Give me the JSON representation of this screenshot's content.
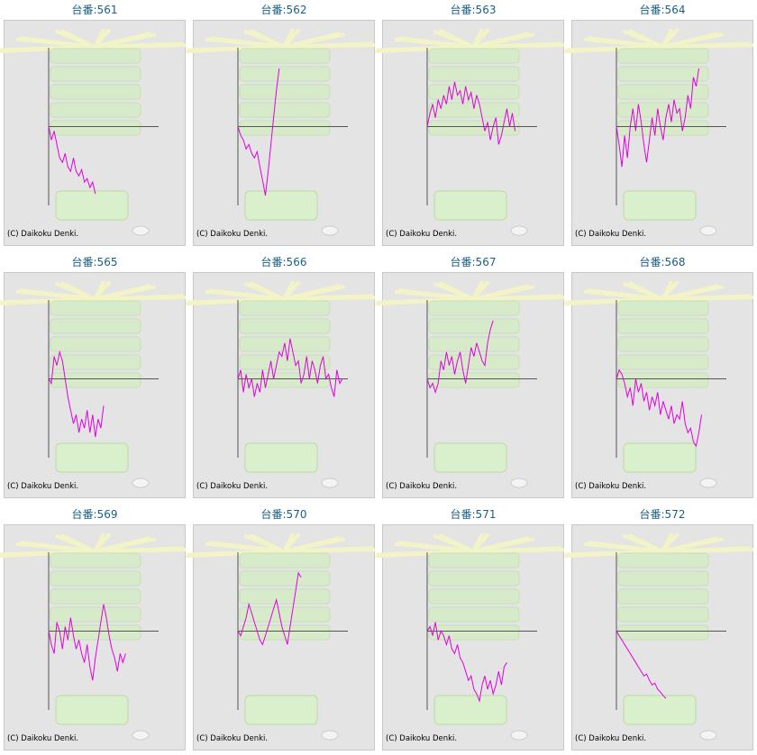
{
  "copyright": "(C) Daikoku Denki.",
  "chart_data": [
    {
      "type": "line",
      "title": "台番:561",
      "color": "#e000e0",
      "xlim": [
        0,
        40
      ],
      "ylim": [
        -88,
        88
      ],
      "values": [
        0,
        -15,
        -5,
        -20,
        -35,
        -40,
        -30,
        -45,
        -50,
        -35,
        -50,
        -55,
        -48,
        -62,
        -58,
        -68,
        -62,
        -75
      ]
    },
    {
      "type": "line",
      "title": "台番:562",
      "color": "#e000e0",
      "xlim": [
        0,
        40
      ],
      "ylim": [
        -88,
        88
      ],
      "values": [
        0,
        -10,
        -15,
        -25,
        -20,
        -30,
        -35,
        -28,
        -45,
        -60,
        -77,
        -50,
        -20,
        10,
        40,
        65
      ]
    },
    {
      "type": "line",
      "title": "台番:563",
      "color": "#e000e0",
      "xlim": [
        0,
        40
      ],
      "ylim": [
        -88,
        88
      ],
      "values": [
        0,
        15,
        25,
        10,
        30,
        20,
        35,
        25,
        45,
        30,
        50,
        35,
        40,
        25,
        45,
        30,
        38,
        20,
        35,
        25,
        10,
        -5,
        5,
        -15,
        0,
        10,
        -20,
        -10,
        5,
        20,
        0,
        15,
        -5
      ]
    },
    {
      "type": "line",
      "title": "台番:564",
      "color": "#e000e0",
      "xlim": [
        0,
        40
      ],
      "ylim": [
        -88,
        88
      ],
      "values": [
        0,
        -20,
        -45,
        -10,
        -35,
        0,
        20,
        -5,
        25,
        5,
        -20,
        -40,
        -15,
        10,
        -10,
        20,
        0,
        -15,
        10,
        25,
        5,
        30,
        15,
        20,
        -5,
        10,
        35,
        20,
        55,
        45,
        65
      ]
    },
    {
      "type": "line",
      "title": "台番:565",
      "color": "#e000e0",
      "xlim": [
        0,
        40
      ],
      "ylim": [
        -88,
        88
      ],
      "values": [
        0,
        -5,
        25,
        15,
        30,
        20,
        0,
        -20,
        -35,
        -50,
        -40,
        -60,
        -45,
        -55,
        -35,
        -60,
        -40,
        -65,
        -45,
        -55,
        -30
      ]
    },
    {
      "type": "line",
      "title": "台番:566",
      "color": "#e000e0",
      "xlim": [
        0,
        40
      ],
      "ylim": [
        -88,
        88
      ],
      "values": [
        0,
        10,
        -15,
        5,
        -10,
        0,
        -20,
        -5,
        -15,
        10,
        -10,
        5,
        20,
        0,
        15,
        30,
        25,
        40,
        20,
        45,
        30,
        15,
        20,
        -5,
        5,
        25,
        0,
        20,
        10,
        -5,
        15,
        25,
        0,
        5,
        -10,
        -20,
        10,
        -5,
        0
      ]
    },
    {
      "type": "line",
      "title": "台番:567",
      "color": "#e000e0",
      "xlim": [
        0,
        40
      ],
      "ylim": [
        -88,
        88
      ],
      "values": [
        0,
        -10,
        -5,
        -15,
        -5,
        20,
        10,
        30,
        15,
        25,
        5,
        20,
        30,
        10,
        -5,
        15,
        35,
        25,
        40,
        30,
        20,
        15,
        40,
        55,
        65
      ]
    },
    {
      "type": "line",
      "title": "台番:568",
      "color": "#e000e0",
      "xlim": [
        0,
        40
      ],
      "ylim": [
        -88,
        88
      ],
      "values": [
        0,
        10,
        5,
        -5,
        -20,
        -10,
        -30,
        0,
        -15,
        -5,
        -25,
        -15,
        -35,
        -20,
        -30,
        -15,
        -40,
        -25,
        -35,
        -45,
        -30,
        -50,
        -40,
        -45,
        -25,
        -50,
        -60,
        -55,
        -70,
        -75,
        -60,
        -40
      ]
    },
    {
      "type": "line",
      "title": "台番:569",
      "color": "#e000e0",
      "xlim": [
        0,
        40
      ],
      "ylim": [
        -88,
        88
      ],
      "values": [
        0,
        -15,
        -25,
        10,
        0,
        -20,
        5,
        -10,
        15,
        -5,
        -20,
        -10,
        -25,
        -35,
        -15,
        -40,
        -55,
        -30,
        -10,
        10,
        30,
        15,
        -5,
        -20,
        -30,
        -45,
        -25,
        -35,
        -25
      ]
    },
    {
      "type": "line",
      "title": "台番:570",
      "color": "#e000e0",
      "xlim": [
        0,
        40
      ],
      "ylim": [
        -88,
        88
      ],
      "values": [
        0,
        -5,
        5,
        15,
        30,
        20,
        10,
        0,
        -10,
        -15,
        -5,
        5,
        15,
        25,
        35,
        20,
        5,
        -5,
        -15,
        5,
        25,
        45,
        65,
        60
      ]
    },
    {
      "type": "line",
      "title": "台番:571",
      "color": "#e000e0",
      "xlim": [
        0,
        40
      ],
      "ylim": [
        -88,
        88
      ],
      "values": [
        0,
        5,
        -5,
        10,
        -10,
        0,
        -5,
        -15,
        -5,
        -20,
        -25,
        -15,
        -30,
        -35,
        -45,
        -55,
        -50,
        -65,
        -70,
        -78,
        -60,
        -50,
        -65,
        -55,
        -70,
        -60,
        -45,
        -60,
        -40,
        -35
      ]
    },
    {
      "type": "line",
      "title": "台番:572",
      "color": "#e000e0",
      "xlim": [
        0,
        40
      ],
      "ylim": [
        -88,
        88
      ],
      "values": [
        0,
        -5,
        -10,
        -15,
        -20,
        -25,
        -30,
        -35,
        -40,
        -45,
        -50,
        -48,
        -55,
        -60,
        -58,
        -65,
        -68,
        -72,
        -75
      ]
    }
  ]
}
